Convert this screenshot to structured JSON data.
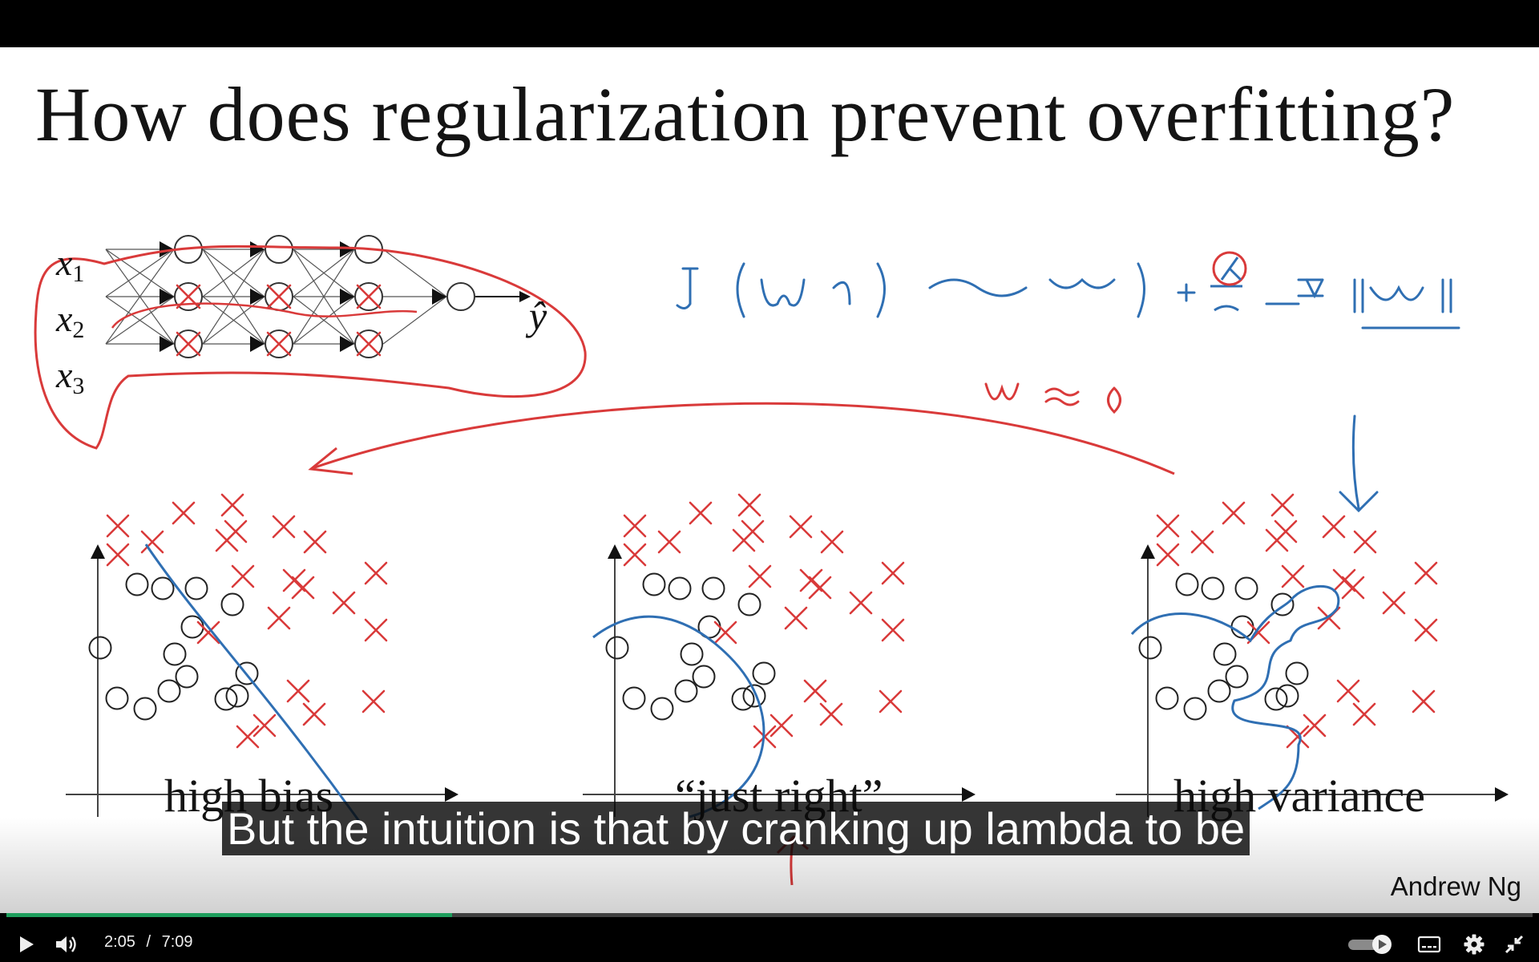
{
  "slide": {
    "title": "How does regularization prevent overfitting?",
    "author": "Andrew Ng",
    "inputs": [
      {
        "base": "x",
        "sub": "1"
      },
      {
        "base": "x",
        "sub": "2"
      },
      {
        "base": "x",
        "sub": "3"
      }
    ],
    "output_label": "ŷ",
    "plots": [
      {
        "caption": "high bias"
      },
      {
        "caption": "“just right”"
      },
      {
        "caption": "high variance"
      }
    ],
    "colors": {
      "ink": "#141414",
      "red_annotation": "#d93a3a",
      "blue_annotation": "#2f6fb3"
    }
  },
  "player": {
    "subtitle": "But the intuition is that by cranking up lambda to be",
    "current_time": "2:05",
    "separator": "/",
    "duration": "7:09",
    "progress": 0.292,
    "accent": "#1d9e5c",
    "icons": [
      "play-icon",
      "volume-icon",
      "autoplay-toggle",
      "subtitles-icon",
      "settings-icon",
      "exit-fullscreen-icon"
    ]
  }
}
